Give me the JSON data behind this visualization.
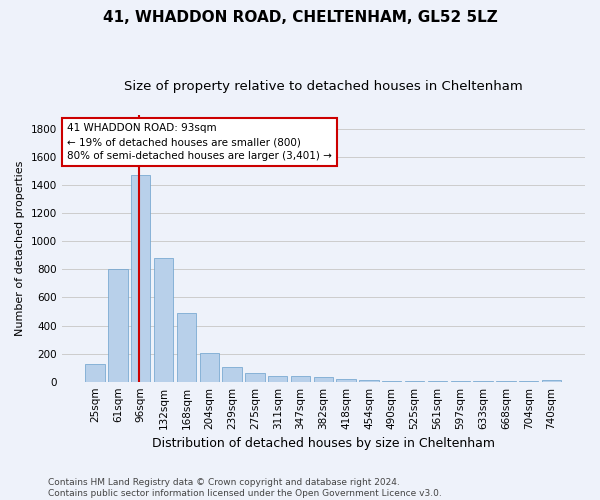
{
  "title": "41, WHADDON ROAD, CHELTENHAM, GL52 5LZ",
  "subtitle": "Size of property relative to detached houses in Cheltenham",
  "xlabel": "Distribution of detached houses by size in Cheltenham",
  "ylabel": "Number of detached properties",
  "categories": [
    "25sqm",
    "61sqm",
    "96sqm",
    "132sqm",
    "168sqm",
    "204sqm",
    "239sqm",
    "275sqm",
    "311sqm",
    "347sqm",
    "382sqm",
    "418sqm",
    "454sqm",
    "490sqm",
    "525sqm",
    "561sqm",
    "597sqm",
    "633sqm",
    "668sqm",
    "704sqm",
    "740sqm"
  ],
  "values": [
    125,
    800,
    1475,
    882,
    490,
    205,
    105,
    65,
    42,
    38,
    30,
    20,
    15,
    8,
    5,
    4,
    3,
    2,
    2,
    2,
    15
  ],
  "bar_color": "#b8d0ea",
  "bar_edge_color": "#6aa0cc",
  "vline_color": "#cc0000",
  "annotation_text": "41 WHADDON ROAD: 93sqm\n← 19% of detached houses are smaller (800)\n80% of semi-detached houses are larger (3,401) →",
  "annotation_box_edge": "#cc0000",
  "ylim": [
    0,
    1900
  ],
  "yticks": [
    0,
    200,
    400,
    600,
    800,
    1000,
    1200,
    1400,
    1600,
    1800
  ],
  "grid_color": "#cccccc",
  "background_color": "#eef2fa",
  "footer": "Contains HM Land Registry data © Crown copyright and database right 2024.\nContains public sector information licensed under the Open Government Licence v3.0.",
  "title_fontsize": 11,
  "subtitle_fontsize": 9.5,
  "xlabel_fontsize": 9,
  "ylabel_fontsize": 8,
  "tick_fontsize": 7.5,
  "footer_fontsize": 6.5
}
